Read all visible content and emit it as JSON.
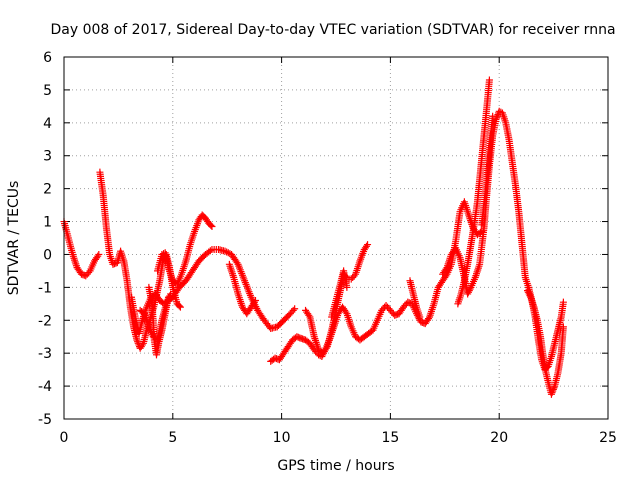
{
  "chart_data": {
    "type": "scatter",
    "title": "Day 008 of 2017, Sidereal Day-to-day VTEC variation (SDTVAR) for receiver rnna",
    "xlabel": "GPS time / hours",
    "ylabel": "SDTVAR / TECUs",
    "xlim": [
      0,
      25
    ],
    "ylim": [
      -5,
      6
    ],
    "xticks": [
      "0",
      "5",
      "10",
      "15",
      "20",
      "25"
    ],
    "yticks": [
      "-5",
      "-4",
      "-3",
      "-2",
      "-1",
      "0",
      "1",
      "2",
      "3",
      "4",
      "5",
      "6"
    ],
    "grid": true,
    "marker": "+",
    "color": "#ff0000",
    "series": [
      {
        "points": [
          [
            0.0,
            1.0
          ],
          [
            0.2,
            0.5
          ],
          [
            0.4,
            0.0
          ],
          [
            0.6,
            -0.4
          ],
          [
            0.8,
            -0.6
          ],
          [
            1.0,
            -0.65
          ],
          [
            1.2,
            -0.5
          ],
          [
            1.4,
            -0.2
          ],
          [
            1.6,
            0.0
          ]
        ]
      },
      {
        "points": [
          [
            1.65,
            2.5
          ],
          [
            1.8,
            1.8
          ],
          [
            1.95,
            0.8
          ],
          [
            2.1,
            0.0
          ],
          [
            2.25,
            -0.3
          ],
          [
            2.45,
            -0.25
          ],
          [
            2.6,
            0.1
          ],
          [
            2.75,
            -0.2
          ],
          [
            2.9,
            -0.8
          ],
          [
            3.05,
            -1.6
          ],
          [
            3.2,
            -2.2
          ],
          [
            3.35,
            -2.6
          ],
          [
            3.5,
            -2.85
          ],
          [
            3.65,
            -2.7
          ],
          [
            3.8,
            -2.3
          ],
          [
            4.0,
            -1.9
          ],
          [
            4.2,
            -1.4
          ],
          [
            4.4,
            -0.8
          ],
          [
            4.55,
            -0.2
          ],
          [
            4.7,
            0.0
          ],
          [
            4.85,
            -0.4
          ],
          [
            5.0,
            -1.0
          ],
          [
            5.2,
            -1.5
          ],
          [
            5.35,
            -1.6
          ]
        ]
      },
      {
        "points": [
          [
            3.1,
            -1.3
          ],
          [
            3.3,
            -2.0
          ],
          [
            3.45,
            -2.4
          ],
          [
            3.6,
            -2.0
          ],
          [
            3.8,
            -1.6
          ],
          [
            4.0,
            -1.3
          ],
          [
            4.2,
            -1.2
          ],
          [
            4.4,
            -1.4
          ],
          [
            4.6,
            -1.5
          ],
          [
            4.8,
            -1.4
          ],
          [
            5.0,
            -1.3
          ]
        ]
      },
      {
        "points": [
          [
            3.5,
            -1.7
          ],
          [
            3.7,
            -1.8
          ],
          [
            3.9,
            -2.2
          ],
          [
            4.1,
            -2.5
          ],
          [
            4.3,
            -2.6
          ],
          [
            4.5,
            -2.0
          ],
          [
            4.7,
            -1.5
          ],
          [
            4.9,
            -1.2
          ]
        ]
      },
      {
        "points": [
          [
            3.9,
            -1.0
          ],
          [
            4.05,
            -1.5
          ],
          [
            4.15,
            -2.6
          ],
          [
            4.25,
            -3.05
          ],
          [
            4.35,
            -2.7
          ],
          [
            4.5,
            -2.3
          ],
          [
            4.65,
            -1.8
          ],
          [
            4.8,
            -1.3
          ]
        ]
      },
      {
        "points": [
          [
            4.3,
            -0.5
          ],
          [
            4.5,
            0.0
          ],
          [
            4.65,
            0.05
          ],
          [
            4.8,
            -0.4
          ],
          [
            5.0,
            -0.8
          ],
          [
            5.2,
            -0.9
          ],
          [
            5.4,
            -0.6
          ],
          [
            5.6,
            -0.2
          ],
          [
            5.8,
            0.3
          ],
          [
            6.0,
            0.7
          ],
          [
            6.2,
            1.05
          ],
          [
            6.35,
            1.2
          ],
          [
            6.5,
            1.1
          ],
          [
            6.65,
            0.95
          ],
          [
            6.8,
            0.85
          ]
        ]
      },
      {
        "points": [
          [
            5.0,
            -1.3
          ],
          [
            5.3,
            -1.0
          ],
          [
            5.6,
            -0.8
          ],
          [
            5.9,
            -0.5
          ],
          [
            6.2,
            -0.2
          ],
          [
            6.5,
            0.0
          ],
          [
            6.8,
            0.15
          ],
          [
            7.1,
            0.15
          ],
          [
            7.4,
            0.1
          ],
          [
            7.7,
            0.0
          ],
          [
            8.0,
            -0.3
          ],
          [
            8.3,
            -0.8
          ],
          [
            8.6,
            -1.3
          ],
          [
            8.9,
            -1.7
          ],
          [
            9.2,
            -2.0
          ],
          [
            9.5,
            -2.25
          ],
          [
            9.8,
            -2.2
          ],
          [
            10.1,
            -2.0
          ],
          [
            10.4,
            -1.8
          ],
          [
            10.6,
            -1.65
          ]
        ]
      },
      {
        "points": [
          [
            7.6,
            -0.3
          ],
          [
            7.8,
            -0.7
          ],
          [
            8.0,
            -1.2
          ],
          [
            8.2,
            -1.6
          ],
          [
            8.4,
            -1.8
          ],
          [
            8.6,
            -1.6
          ],
          [
            8.8,
            -1.4
          ]
        ]
      },
      {
        "points": [
          [
            9.5,
            -3.25
          ],
          [
            9.7,
            -3.15
          ],
          [
            9.9,
            -3.2
          ],
          [
            10.1,
            -3.0
          ],
          [
            10.3,
            -2.8
          ],
          [
            10.5,
            -2.6
          ],
          [
            10.7,
            -2.5
          ],
          [
            10.9,
            -2.55
          ],
          [
            11.1,
            -2.6
          ],
          [
            11.3,
            -2.7
          ],
          [
            11.5,
            -2.9
          ],
          [
            11.7,
            -3.05
          ],
          [
            11.85,
            -3.1
          ],
          [
            12.0,
            -2.9
          ],
          [
            12.2,
            -2.6
          ],
          [
            12.4,
            -2.2
          ],
          [
            12.6,
            -1.8
          ],
          [
            12.8,
            -1.6
          ],
          [
            13.0,
            -1.8
          ],
          [
            13.2,
            -2.2
          ],
          [
            13.4,
            -2.5
          ],
          [
            13.6,
            -2.6
          ],
          [
            13.8,
            -2.5
          ],
          [
            14.0,
            -2.4
          ],
          [
            14.2,
            -2.3
          ],
          [
            14.4,
            -2.0
          ],
          [
            14.6,
            -1.7
          ],
          [
            14.8,
            -1.55
          ],
          [
            15.0,
            -1.7
          ],
          [
            15.2,
            -1.85
          ],
          [
            15.4,
            -1.8
          ],
          [
            15.6,
            -1.6
          ],
          [
            15.8,
            -1.45
          ],
          [
            16.0,
            -1.5
          ],
          [
            16.2,
            -1.8
          ],
          [
            16.4,
            -2.05
          ],
          [
            16.6,
            -2.1
          ],
          [
            16.8,
            -1.9
          ],
          [
            17.0,
            -1.5
          ],
          [
            17.2,
            -1.0
          ],
          [
            17.4,
            -0.8
          ],
          [
            17.6,
            -0.6
          ],
          [
            17.8,
            -0.3
          ],
          [
            18.0,
            0.4
          ],
          [
            18.2,
            1.3
          ],
          [
            18.4,
            1.6
          ],
          [
            18.6,
            1.2
          ],
          [
            18.8,
            0.8
          ],
          [
            19.0,
            0.6
          ],
          [
            19.2,
            0.7
          ]
        ]
      },
      {
        "points": [
          [
            11.1,
            -1.7
          ],
          [
            11.3,
            -1.9
          ],
          [
            11.5,
            -2.5
          ],
          [
            11.7,
            -2.9
          ],
          [
            11.9,
            -3.0
          ],
          [
            12.1,
            -2.8
          ],
          [
            12.3,
            -2.3
          ],
          [
            12.5,
            -1.7
          ],
          [
            12.7,
            -1.1
          ],
          [
            12.85,
            -0.6
          ],
          [
            13.0,
            -0.75
          ],
          [
            13.2,
            -0.75
          ],
          [
            13.4,
            -0.6
          ],
          [
            13.6,
            -0.2
          ],
          [
            13.8,
            0.15
          ],
          [
            13.95,
            0.3
          ]
        ]
      },
      {
        "points": [
          [
            12.3,
            -1.9
          ],
          [
            12.5,
            -1.4
          ],
          [
            12.7,
            -0.9
          ],
          [
            12.85,
            -0.5
          ],
          [
            13.0,
            -1.0
          ]
        ]
      },
      {
        "points": [
          [
            15.9,
            -0.8
          ],
          [
            16.05,
            -1.2
          ],
          [
            16.2,
            -1.6
          ],
          [
            16.35,
            -1.9
          ]
        ]
      },
      {
        "points": [
          [
            17.4,
            -0.6
          ],
          [
            17.6,
            -0.4
          ],
          [
            17.8,
            0.0
          ],
          [
            18.0,
            0.2
          ],
          [
            18.2,
            -0.1
          ],
          [
            18.4,
            -0.7
          ],
          [
            18.55,
            -1.2
          ],
          [
            18.7,
            -1.0
          ],
          [
            18.9,
            -0.7
          ],
          [
            19.1,
            -0.3
          ],
          [
            19.3,
            0.8
          ],
          [
            19.4,
            1.6
          ],
          [
            19.55,
            2.7
          ],
          [
            19.7,
            3.6
          ],
          [
            19.85,
            4.1
          ],
          [
            20.0,
            4.35
          ],
          [
            20.15,
            4.3
          ],
          [
            20.3,
            4.0
          ],
          [
            20.45,
            3.5
          ],
          [
            20.6,
            2.8
          ],
          [
            20.75,
            2.1
          ],
          [
            20.9,
            1.3
          ],
          [
            21.05,
            0.3
          ],
          [
            21.2,
            -0.7
          ],
          [
            21.35,
            -1.0
          ],
          [
            21.5,
            -1.4
          ],
          [
            21.65,
            -1.9
          ],
          [
            21.8,
            -2.6
          ],
          [
            21.95,
            -3.2
          ],
          [
            22.1,
            -3.5
          ],
          [
            22.25,
            -3.4
          ],
          [
            22.4,
            -3.1
          ],
          [
            22.55,
            -2.7
          ],
          [
            22.7,
            -2.3
          ],
          [
            22.85,
            -1.9
          ],
          [
            22.95,
            -1.45
          ]
        ]
      },
      {
        "points": [
          [
            18.1,
            -1.5
          ],
          [
            18.25,
            -1.2
          ],
          [
            18.4,
            -0.8
          ],
          [
            18.55,
            -0.3
          ],
          [
            18.7,
            0.3
          ],
          [
            18.85,
            0.9
          ],
          [
            19.0,
            1.6
          ],
          [
            19.15,
            2.6
          ],
          [
            19.3,
            3.6
          ],
          [
            19.45,
            4.6
          ],
          [
            19.55,
            5.3
          ]
        ]
      },
      {
        "points": [
          [
            19.2,
            0.9
          ],
          [
            19.35,
            1.8
          ],
          [
            19.5,
            2.8
          ],
          [
            19.6,
            3.5
          ],
          [
            19.7,
            4.2
          ]
        ]
      },
      {
        "points": [
          [
            21.3,
            -1.1
          ],
          [
            21.45,
            -1.3
          ],
          [
            21.6,
            -1.6
          ],
          [
            21.75,
            -2.0
          ],
          [
            21.9,
            -2.5
          ],
          [
            22.0,
            -3.0
          ],
          [
            22.15,
            -3.6
          ],
          [
            22.3,
            -4.0
          ],
          [
            22.4,
            -4.25
          ],
          [
            22.55,
            -4.0
          ],
          [
            22.7,
            -3.6
          ],
          [
            22.85,
            -3.0
          ],
          [
            22.95,
            -2.2
          ]
        ]
      }
    ]
  }
}
